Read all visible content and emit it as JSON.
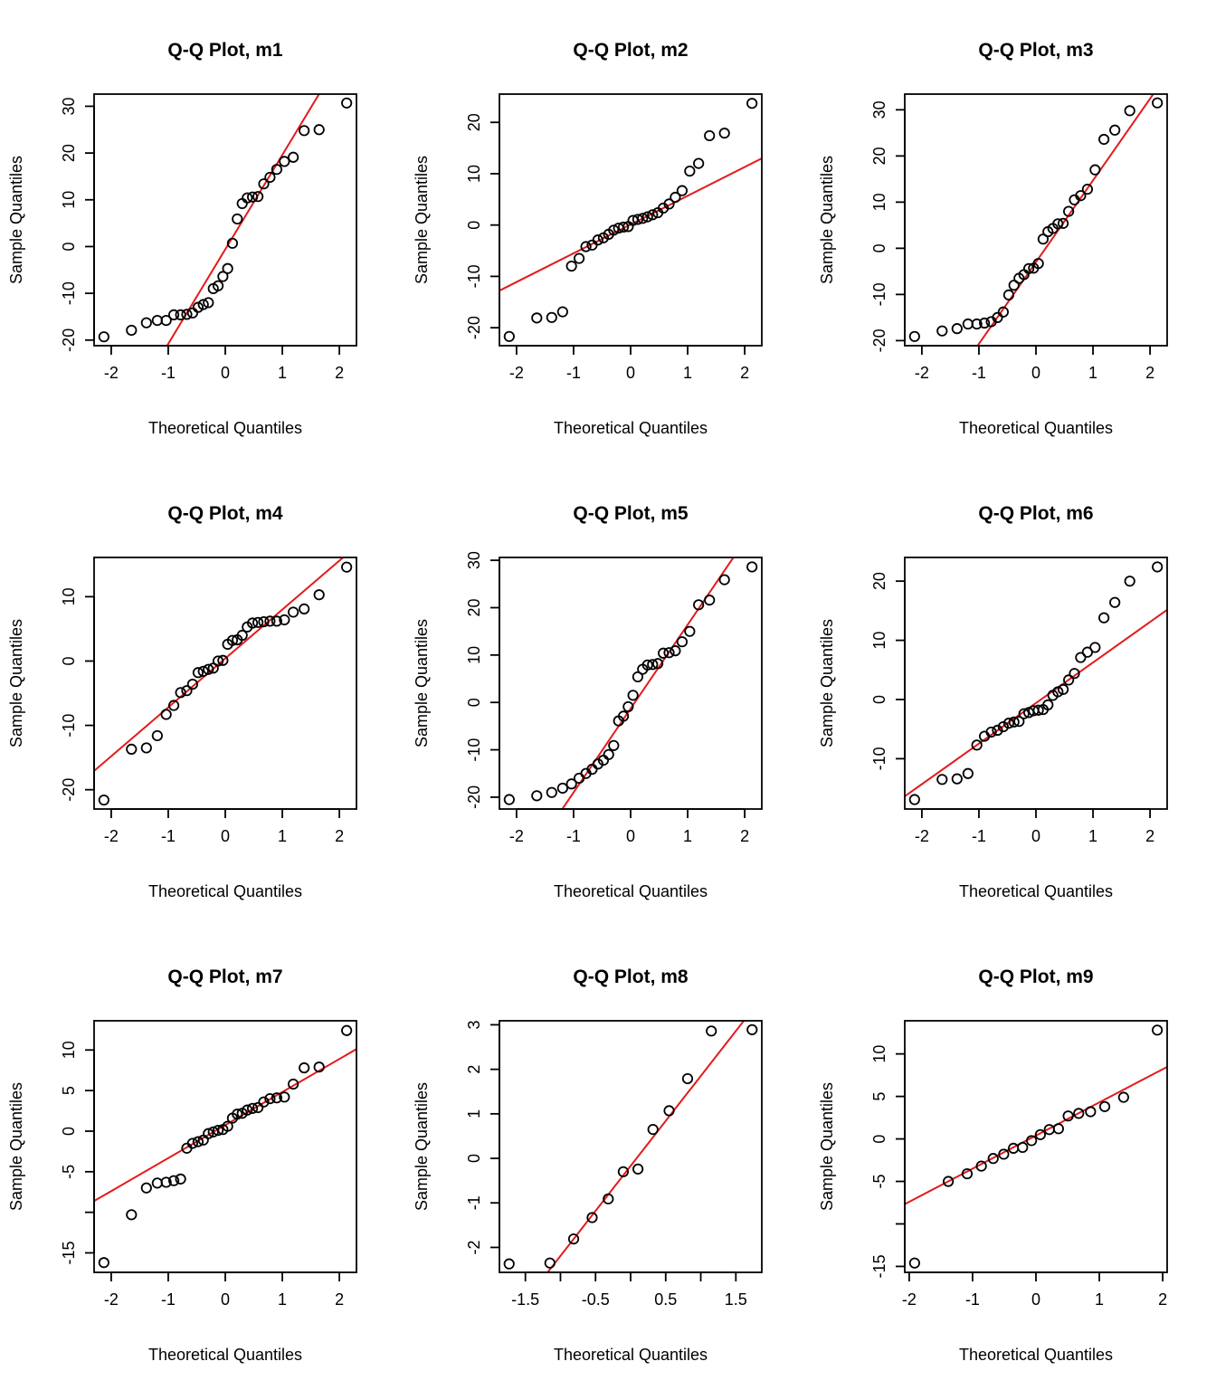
{
  "colors": {
    "points": "#000000",
    "line": "#e31a1c",
    "axes": "#000000"
  },
  "chart_data": [
    {
      "type": "scatter",
      "title": "Q-Q Plot, m1",
      "xlabel": "Theoretical Quantiles",
      "ylabel": "Sample Quantiles",
      "xlim": [
        -2.3,
        2.3
      ],
      "ylim": [
        -21.2,
        32.6
      ],
      "xticks": [
        -2,
        -1,
        0,
        1,
        2
      ],
      "xticklabels": [
        "-2",
        "-1",
        "0",
        "1",
        "2"
      ],
      "yticks": [
        -20,
        -10,
        0,
        10,
        20,
        30
      ],
      "yticklabels": [
        "-20",
        "-10",
        "0",
        "10",
        "20",
        "30"
      ],
      "n": 30,
      "sample": [
        -19.3,
        -17.9,
        -16.3,
        -15.8,
        -15.8,
        -14.6,
        -14.6,
        -14.5,
        -14.2,
        -13.0,
        -12.4,
        -12.0,
        -9.0,
        -8.4,
        -6.4,
        -4.7,
        0.7,
        5.9,
        9.2,
        10.4,
        10.6,
        10.7,
        13.4,
        14.8,
        16.5,
        18.2,
        19.1,
        24.8,
        25.0,
        30.7
      ],
      "qqline": {
        "slope": 20.2,
        "intercept": -0.6
      }
    },
    {
      "type": "scatter",
      "title": "Q-Q Plot, m2",
      "xlabel": "Theoretical Quantiles",
      "ylabel": "Sample Quantiles",
      "xlim": [
        -2.3,
        2.3
      ],
      "ylim": [
        -23.5,
        25.5
      ],
      "xticks": [
        -2,
        -1,
        0,
        1,
        2
      ],
      "xticklabels": [
        "-2",
        "-1",
        "0",
        "1",
        "2"
      ],
      "yticks": [
        -20,
        -10,
        0,
        10,
        20
      ],
      "yticklabels": [
        "-20",
        "-10",
        "0",
        "10",
        "20"
      ],
      "n": 30,
      "sample": [
        -21.7,
        -18.1,
        -18.0,
        -16.9,
        -8.0,
        -6.5,
        -4.2,
        -3.9,
        -2.9,
        -2.5,
        -1.8,
        -1.0,
        -0.6,
        -0.4,
        -0.3,
        0.9,
        1.1,
        1.3,
        1.6,
        2.0,
        2.4,
        3.3,
        4.1,
        5.4,
        6.7,
        10.5,
        12.0,
        17.4,
        17.9,
        23.7
      ],
      "qqline": {
        "slope": 5.6,
        "intercept": 0.1
      }
    },
    {
      "type": "scatter",
      "title": "Q-Q Plot, m3",
      "xlabel": "Theoretical Quantiles",
      "ylabel": "Sample Quantiles",
      "xlim": [
        -2.3,
        2.3
      ],
      "ylim": [
        -21.1,
        33.4
      ],
      "xticks": [
        -2,
        -1,
        0,
        1,
        2
      ],
      "xticklabels": [
        "-2",
        "-1",
        "0",
        "1",
        "2"
      ],
      "yticks": [
        -20,
        -10,
        0,
        10,
        20,
        30
      ],
      "yticklabels": [
        "-20",
        "-10",
        "0",
        "10",
        "20",
        "30"
      ],
      "n": 30,
      "sample": [
        -19.1,
        -17.9,
        -17.4,
        -16.4,
        -16.4,
        -16.2,
        -15.9,
        -15.0,
        -13.8,
        -10.1,
        -8.0,
        -6.5,
        -5.7,
        -4.4,
        -4.3,
        -3.3,
        2.0,
        3.6,
        4.3,
        5.3,
        5.4,
        8.0,
        10.5,
        11.4,
        12.8,
        17.0,
        23.6,
        25.6,
        29.8,
        31.5
      ],
      "qqline": {
        "slope": 17.7,
        "intercept": -3.0
      }
    },
    {
      "type": "scatter",
      "title": "Q-Q Plot, m4",
      "xlabel": "Theoretical Quantiles",
      "ylabel": "Sample Quantiles",
      "xlim": [
        -2.3,
        2.3
      ],
      "ylim": [
        -23.0,
        16.1
      ],
      "xticks": [
        -2,
        -1,
        0,
        1,
        2
      ],
      "xticklabels": [
        "-2",
        "-1",
        "0",
        "1",
        "2"
      ],
      "yticks": [
        -20,
        -10,
        0,
        10
      ],
      "yticklabels": [
        "-20",
        "-10",
        "0",
        "10"
      ],
      "n": 30,
      "sample": [
        -21.6,
        -13.7,
        -13.5,
        -11.6,
        -8.3,
        -6.9,
        -4.9,
        -4.6,
        -3.6,
        -1.8,
        -1.6,
        -1.3,
        -1.1,
        0.0,
        0.1,
        2.6,
        3.2,
        3.3,
        4.0,
        5.3,
        5.9,
        6.0,
        6.1,
        6.2,
        6.2,
        6.4,
        7.6,
        8.1,
        10.3,
        14.6
      ],
      "qqline": {
        "slope": 7.6,
        "intercept": 0.4
      }
    },
    {
      "type": "scatter",
      "title": "Q-Q Plot, m5",
      "xlabel": "Theoretical Quantiles",
      "ylabel": "Sample Quantiles",
      "xlim": [
        -2.3,
        2.3
      ],
      "ylim": [
        -22.5,
        30.6
      ],
      "xticks": [
        -2,
        -1,
        0,
        1,
        2
      ],
      "xticklabels": [
        "-2",
        "-1",
        "0",
        "1",
        "2"
      ],
      "yticks": [
        -20,
        -10,
        0,
        10,
        20,
        30
      ],
      "yticklabels": [
        "-20",
        "-10",
        "0",
        "10",
        "20",
        "30"
      ],
      "n": 30,
      "sample": [
        -20.5,
        -19.7,
        -19.0,
        -18.1,
        -17.2,
        -16.0,
        -15.0,
        -14.1,
        -13.0,
        -12.2,
        -11.0,
        -9.1,
        -3.9,
        -2.9,
        -0.9,
        1.5,
        5.4,
        7.0,
        7.9,
        8.0,
        8.2,
        10.4,
        10.5,
        10.9,
        12.8,
        15.0,
        20.6,
        21.6,
        25.9,
        28.6
      ],
      "qqline": {
        "slope": 17.7,
        "intercept": -1.3
      }
    },
    {
      "type": "scatter",
      "title": "Q-Q Plot, m6",
      "xlabel": "Theoretical Quantiles",
      "ylabel": "Sample Quantiles",
      "xlim": [
        -2.3,
        2.3
      ],
      "ylim": [
        -18.5,
        24.0
      ],
      "xticks": [
        -2,
        -1,
        0,
        1,
        2
      ],
      "xticklabels": [
        "-2",
        "-1",
        "0",
        "1",
        "2"
      ],
      "yticks": [
        -10,
        0,
        10,
        20
      ],
      "yticklabels": [
        "-10",
        "0",
        "10",
        "20"
      ],
      "n": 30,
      "sample": [
        -16.9,
        -13.5,
        -13.4,
        -12.5,
        -7.7,
        -6.2,
        -5.5,
        -5.2,
        -4.6,
        -4.0,
        -3.8,
        -3.7,
        -2.4,
        -2.2,
        -1.9,
        -1.8,
        -1.7,
        -0.9,
        0.7,
        1.3,
        1.7,
        3.3,
        4.4,
        7.1,
        8.0,
        8.8,
        13.8,
        16.4,
        20.0,
        22.4
      ],
      "qqline": {
        "slope": 6.85,
        "intercept": -0.6
      }
    },
    {
      "type": "scatter",
      "title": "Q-Q Plot, m7",
      "xlabel": "Theoretical Quantiles",
      "ylabel": "Sample Quantiles",
      "xlim": [
        -2.3,
        2.3
      ],
      "ylim": [
        -17.4,
        13.6
      ],
      "xticks": [
        -2,
        -1,
        0,
        1,
        2
      ],
      "xticklabels": [
        "-2",
        "-1",
        "0",
        "1",
        "2"
      ],
      "yticks": [
        -15,
        -10,
        -5,
        0,
        5,
        10
      ],
      "yticklabels": [
        "-15",
        "",
        "-5",
        "0",
        "5",
        "10"
      ],
      "n": 30,
      "sample": [
        -16.2,
        -10.3,
        -7.0,
        -6.4,
        -6.3,
        -6.1,
        -5.9,
        -2.1,
        -1.5,
        -1.3,
        -1.1,
        -0.3,
        -0.1,
        0.1,
        0.2,
        0.6,
        1.6,
        2.1,
        2.2,
        2.6,
        2.8,
        2.9,
        3.6,
        4.0,
        4.1,
        4.2,
        5.8,
        7.8,
        7.9,
        12.4
      ],
      "qqline": {
        "slope": 4.07,
        "intercept": 0.75
      }
    },
    {
      "type": "scatter",
      "title": "Q-Q Plot, m8",
      "xlabel": "Theoretical Quantiles",
      "ylabel": "Sample Quantiles",
      "xlim": [
        -1.87,
        1.87
      ],
      "ylim": [
        -2.56,
        3.09
      ],
      "xticks": [
        -1.5,
        -1.0,
        -0.5,
        0.0,
        0.5,
        1.0,
        1.5
      ],
      "xticklabels": [
        "-1.5",
        "",
        "-0.5",
        "",
        "0.5",
        "",
        "1.5"
      ],
      "yticks": [
        -2,
        -1,
        0,
        1,
        2,
        3
      ],
      "yticklabels": [
        "-2",
        "-1",
        "0",
        "1",
        "2",
        "3"
      ],
      "n": 12,
      "sample": [
        -2.37,
        -2.35,
        -1.81,
        -1.33,
        -0.91,
        -0.3,
        -0.24,
        0.65,
        1.07,
        1.79,
        2.86,
        2.89
      ],
      "qqline": {
        "slope": 2.02,
        "intercept": -0.17
      }
    },
    {
      "type": "scatter",
      "title": "Q-Q Plot, m9",
      "xlabel": "Theoretical Quantiles",
      "ylabel": "Sample Quantiles",
      "xlim": [
        -2.07,
        2.07
      ],
      "ylim": [
        -15.7,
        13.9
      ],
      "xticks": [
        -2,
        -1,
        0,
        1,
        2
      ],
      "xticklabels": [
        "-2",
        "-1",
        "0",
        "1",
        "2"
      ],
      "yticks": [
        -15,
        -10,
        -5,
        0,
        5,
        10
      ],
      "yticklabels": [
        "-15",
        "",
        "-5",
        "0",
        "5",
        "10"
      ],
      "n": 18,
      "sample": [
        -14.6,
        -5.0,
        -4.1,
        -3.2,
        -2.3,
        -1.8,
        -1.1,
        -1.0,
        -0.2,
        0.5,
        1.1,
        1.2,
        2.7,
        3.0,
        3.2,
        3.8,
        4.9,
        12.8
      ],
      "qqline": {
        "slope": 3.9,
        "intercept": 0.4
      }
    }
  ]
}
